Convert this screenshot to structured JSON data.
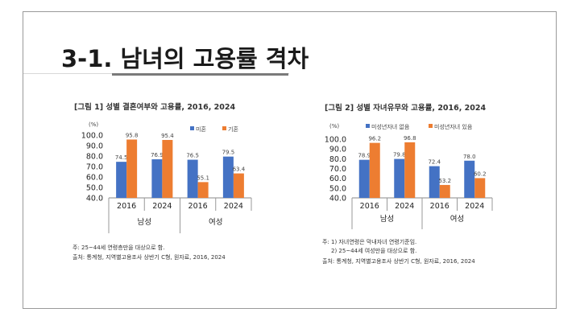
{
  "slide": {
    "title": "3-1. 남녀의 고용률 격차"
  },
  "colors": {
    "blue": "#4472C4",
    "orange": "#ED7D31",
    "underline": "#7a7a7a"
  },
  "chart_data": [
    {
      "type": "bar",
      "title": "[그림 1] 성별 결혼여부와 고용률, 2016, 2024",
      "unit": "(%)",
      "groups": [
        "남성",
        "여성"
      ],
      "categories": [
        "2016",
        "2024",
        "2016",
        "2024"
      ],
      "series": [
        {
          "name": "미혼",
          "values": [
            74.5,
            76.9,
            76.5,
            79.5
          ]
        },
        {
          "name": "기혼",
          "values": [
            95.8,
            95.4,
            55.1,
            63.4
          ]
        }
      ],
      "yticks": [
        "40.0",
        "50.0",
        "60.0",
        "70.0",
        "80.0",
        "90.0",
        "100.0"
      ],
      "ylim": [
        40,
        100
      ],
      "legend": "top-right",
      "notes": [
        "주: 25~44세 연령층만을 대상으로 함.",
        "출처: 통계청, 지역별고용조사 상반기 C형, 원자료, 2016, 2024"
      ]
    },
    {
      "type": "bar",
      "title": "[그림 2] 성별 자녀유무와 고용률, 2016, 2024",
      "unit": "(%)",
      "groups": [
        "남성",
        "여성"
      ],
      "categories": [
        "2016",
        "2024",
        "2016",
        "2024"
      ],
      "series": [
        {
          "name": "미성년자녀 없음",
          "values": [
            78.9,
            79.8,
            72.4,
            78.0
          ]
        },
        {
          "name": "미성년자녀 있음",
          "values": [
            96.2,
            96.8,
            53.2,
            60.2
          ]
        }
      ],
      "yticks": [
        "40.0",
        "50.0",
        "60.0",
        "70.0",
        "80.0",
        "90.0",
        "100.0"
      ],
      "ylim": [
        40,
        100
      ],
      "legend": "top",
      "notes": [
        "주: 1) 자녀연령은 막내자녀 연령기준임.",
        "2) 25~44세 여성만을 대상으로 함.",
        "출처: 통계청, 지역별고용조사 상반기 C형, 원자료, 2016, 2024"
      ]
    }
  ]
}
